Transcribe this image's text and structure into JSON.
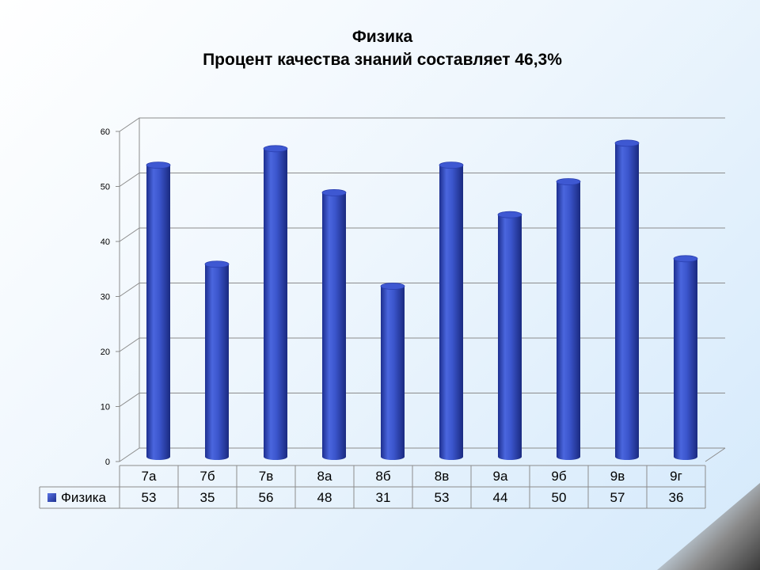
{
  "chart_data": {
    "type": "bar",
    "title": "Физика",
    "subtitle": "Процент качества знаний составляет 46,3%",
    "categories": [
      "7а",
      "7б",
      "7в",
      "8а",
      "8б",
      "8в",
      "9а",
      "9б",
      "9в",
      "9г"
    ],
    "series": [
      {
        "name": "Физика",
        "values": [
          53,
          35,
          56,
          48,
          31,
          53,
          44,
          50,
          57,
          36
        ]
      }
    ],
    "yticks": [
      "0",
      "10",
      "20",
      "30",
      "40",
      "50",
      "60"
    ],
    "ylim": [
      0,
      60
    ],
    "grid": true,
    "legend": "data-table-left",
    "colors": {
      "bar": "#3b55cc",
      "bar_light": "#5a74e6",
      "bar_dark": "#1d2f8f",
      "grid": "#8c8c8c"
    }
  }
}
